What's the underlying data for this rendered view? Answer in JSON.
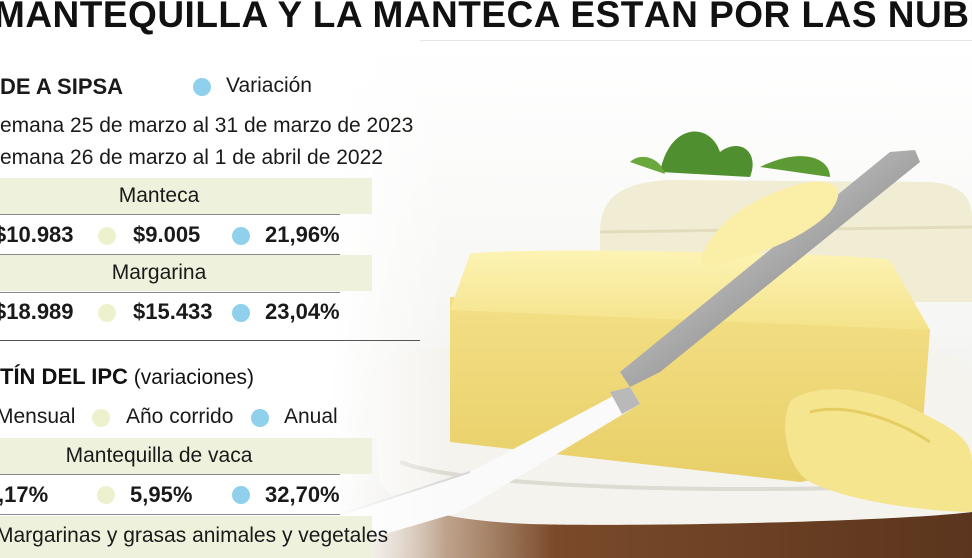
{
  "header": {
    "title": "MANTEQUILLA Y LA MANTECA ESTÁN POR LAS NUBES"
  },
  "sipsa": {
    "title": "DE A SIPSA",
    "legend_variation": "Variación",
    "week_2023": "emana 25 de marzo al 31 de marzo de 2023",
    "week_2022": "emana 26 de marzo al 1 de abril de 2022",
    "rows": [
      {
        "name": "Manteca",
        "price_2023": "$10.983",
        "price_2022": "$9.005",
        "variation": "21,96%"
      },
      {
        "name": "Margarina",
        "price_2023": "$18.989",
        "price_2022": "$15.433",
        "variation": "23,04%"
      }
    ]
  },
  "ipc": {
    "title": "TÍN DEL IPC",
    "subtitle": "(variaciones)",
    "legend_monthly": "Mensual",
    "legend_ytd": "Año corrido",
    "legend_annual": "Anual",
    "rows": [
      {
        "name": "Mantequilla de vaca",
        "monthly": ",17%",
        "ytd": "5,95%",
        "annual": "32,70%"
      },
      {
        "name": "Margarinas y grasas animales y vegetales"
      }
    ]
  },
  "colors": {
    "accent_blue": "#8fd1ec",
    "accent_cream": "#eef1cd",
    "band": "#eef2dc"
  }
}
